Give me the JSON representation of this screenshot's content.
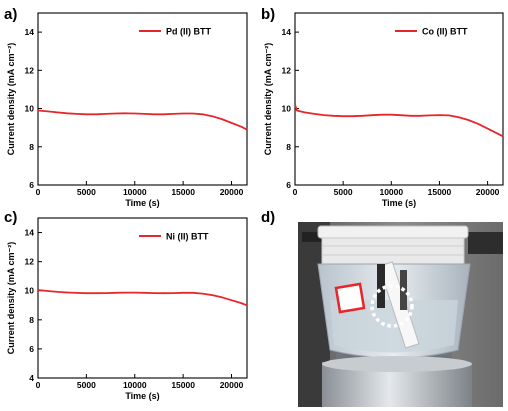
{
  "chart_data": [
    {
      "type": "line",
      "panel_label": "a)",
      "xlabel": "Time (s)",
      "ylabel": "Current density (mA cm⁻²)",
      "xlim": [
        0,
        21600
      ],
      "ylim": [
        6,
        15
      ],
      "xticks": [
        "0",
        "5000",
        "10000",
        "15000",
        "20000"
      ],
      "yticks": [
        "6",
        "8",
        "10",
        "12",
        "14"
      ],
      "legend_position": "top-right",
      "series": [
        {
          "name": "Pd (II) BTT",
          "color": "#e8262a",
          "x": [
            0,
            1000,
            2000,
            3000,
            4000,
            5000,
            6000,
            7000,
            8000,
            9000,
            10000,
            11000,
            12000,
            13000,
            14000,
            15000,
            16000,
            17000,
            18000,
            19000,
            20000,
            21000,
            21600
          ],
          "y": [
            9.9,
            9.85,
            9.8,
            9.75,
            9.72,
            9.7,
            9.7,
            9.72,
            9.74,
            9.75,
            9.74,
            9.72,
            9.7,
            9.7,
            9.72,
            9.74,
            9.74,
            9.7,
            9.6,
            9.45,
            9.25,
            9.05,
            8.9
          ]
        }
      ]
    },
    {
      "type": "line",
      "panel_label": "b)",
      "xlabel": "Time (s)",
      "ylabel": "Current density (mA cm⁻²)",
      "xlim": [
        0,
        21600
      ],
      "ylim": [
        6,
        15
      ],
      "xticks": [
        "0",
        "5000",
        "10000",
        "15000",
        "20000"
      ],
      "yticks": [
        "6",
        "8",
        "10",
        "12",
        "14"
      ],
      "legend_position": "top-right",
      "series": [
        {
          "name": "Co (II) BTT",
          "color": "#e8262a",
          "x": [
            0,
            200,
            1000,
            2000,
            3000,
            4000,
            5000,
            6000,
            7000,
            8000,
            9000,
            10000,
            11000,
            12000,
            13000,
            14000,
            15000,
            16000,
            17000,
            18000,
            19000,
            20000,
            21000,
            21600
          ],
          "y": [
            10.2,
            9.9,
            9.8,
            9.72,
            9.66,
            9.62,
            9.6,
            9.6,
            9.62,
            9.65,
            9.68,
            9.68,
            9.65,
            9.62,
            9.62,
            9.64,
            9.66,
            9.64,
            9.55,
            9.4,
            9.2,
            8.95,
            8.7,
            8.55
          ]
        }
      ]
    },
    {
      "type": "line",
      "panel_label": "c)",
      "xlabel": "Time (s)",
      "ylabel": "Current density (mA cm⁻²)",
      "xlim": [
        0,
        21600
      ],
      "ylim": [
        4,
        15
      ],
      "xticks": [
        "0",
        "5000",
        "10000",
        "15000",
        "20000"
      ],
      "yticks": [
        "4",
        "6",
        "8",
        "10",
        "12",
        "14"
      ],
      "legend_position": "top-right",
      "series": [
        {
          "name": "Ni (II) BTT",
          "color": "#e8262a",
          "x": [
            0,
            1000,
            2000,
            3000,
            4000,
            5000,
            6000,
            7000,
            8000,
            9000,
            10000,
            11000,
            12000,
            13000,
            14000,
            15000,
            16000,
            17000,
            18000,
            19000,
            20000,
            21000,
            21600
          ],
          "y": [
            10.05,
            9.98,
            9.92,
            9.88,
            9.85,
            9.83,
            9.83,
            9.84,
            9.86,
            9.87,
            9.87,
            9.86,
            9.84,
            9.83,
            9.84,
            9.86,
            9.86,
            9.8,
            9.7,
            9.55,
            9.35,
            9.15,
            9.0
          ]
        }
      ]
    }
  ],
  "photo": {
    "panel_label": "d)"
  }
}
